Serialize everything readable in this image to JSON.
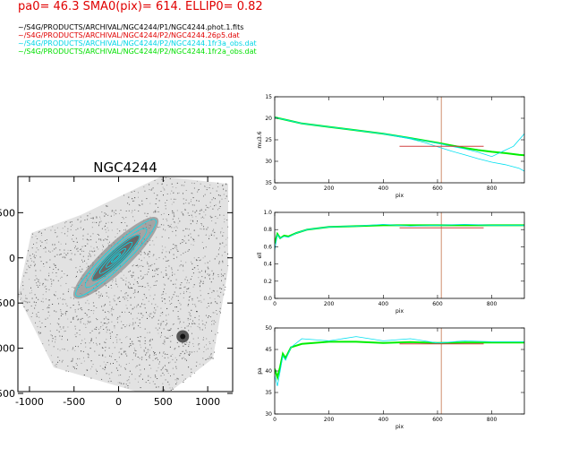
{
  "header": {
    "params": "pa0= 46.3  SMA0(pix)= 614.  ELLIP0= 0.82"
  },
  "files": [
    {
      "name": "~/S4G/PRODUCTS/ARCHIVAL/NGC4244/P1/NGC4244.phot.1.fits",
      "color": "#000000"
    },
    {
      "name": "~/S4G/PRODUCTS/ARCHIVAL/NGC4244/P2/NGC4244.26p5.dat",
      "color": "#e00000"
    },
    {
      "name": "~/S4G/PRODUCTS/ARCHIVAL/NGC4244/P2/NGC4244.1fr3a_obs.dat",
      "color": "#00d6e6"
    },
    {
      "name": "~/S4G/PRODUCTS/ARCHIVAL/NGC4244/P2/NGC4244.1fr2a_obs.dat",
      "color": "#00e000"
    }
  ],
  "colors": {
    "red": "#d04040",
    "cyan": "#00e0f0",
    "green": "#00ee00",
    "vline": "#d09070"
  },
  "chart_data": [
    {
      "type": "scatter",
      "title": "NGC4244",
      "x_ticks": [
        "-1000",
        "-500",
        "0",
        "500",
        "1000"
      ],
      "x_tick_values": [
        -1000,
        -500,
        0,
        500,
        1000
      ],
      "y_ticks": [
        "500",
        "0",
        "-500",
        "-1000",
        "-1500"
      ],
      "y_tick_values": [
        500,
        0,
        -500,
        -1000,
        -1500
      ],
      "xlim": [
        -1130,
        1280
      ],
      "ylim": [
        -1480,
        900
      ],
      "ellipses": {
        "center": [
          -30,
          0
        ],
        "pa_deg": 46.3,
        "sma_pix": [
          614,
          470,
          360,
          250,
          150,
          70
        ],
        "ellip": 0.82,
        "color": "cyan"
      }
    },
    {
      "type": "line",
      "xlabel": "pix",
      "ylabel": "mu3.6",
      "xlim": [
        0,
        920
      ],
      "ylim": [
        35,
        15
      ],
      "x_ticks": [
        "0",
        "200",
        "400",
        "600",
        "800"
      ],
      "x_tick_values": [
        0,
        200,
        400,
        600,
        800
      ],
      "y_ticks": [
        "15",
        "20",
        "25",
        "30",
        "35"
      ],
      "y_tick_values": [
        15,
        20,
        25,
        30,
        35
      ],
      "vline_x": 614,
      "hline": {
        "y": 26.5,
        "x_range": [
          460,
          770
        ]
      },
      "series": [
        {
          "color": "green",
          "x": [
            0,
            50,
            100,
            200,
            300,
            400,
            500,
            600,
            650,
            700,
            750,
            800,
            850,
            900,
            920
          ],
          "y": [
            19.8,
            20.5,
            21.2,
            22.0,
            22.8,
            23.6,
            24.6,
            25.7,
            26.3,
            26.9,
            27.4,
            27.8,
            28.1,
            28.5,
            28.6
          ]
        },
        {
          "color": "cyan",
          "x": [
            0,
            100,
            200,
            300,
            400,
            500,
            550,
            600,
            650,
            700,
            750,
            800,
            850,
            880,
            920
          ],
          "y": [
            19.8,
            21.2,
            22.0,
            22.8,
            23.6,
            24.6,
            25.2,
            25.8,
            26.5,
            27.1,
            27.9,
            28.9,
            27.4,
            26.5,
            23.6
          ]
        },
        {
          "color": "cyan",
          "x": [
            400,
            500,
            550,
            600,
            650,
            700,
            750,
            800,
            850,
            900,
            920
          ],
          "y": [
            23.6,
            24.8,
            25.6,
            26.6,
            27.6,
            28.5,
            29.4,
            30.2,
            30.8,
            31.6,
            32.3
          ]
        }
      ]
    },
    {
      "type": "line",
      "xlabel": "pix",
      "ylabel": "ell",
      "xlim": [
        0,
        920
      ],
      "ylim": [
        0,
        1
      ],
      "x_ticks": [
        "0",
        "200",
        "400",
        "600",
        "800"
      ],
      "x_tick_values": [
        0,
        200,
        400,
        600,
        800
      ],
      "y_ticks": [
        "0.0",
        "0.2",
        "0.4",
        "0.6",
        "0.8",
        "1.0"
      ],
      "y_tick_values": [
        0,
        0.2,
        0.4,
        0.6,
        0.8,
        1.0
      ],
      "vline_x": 614,
      "hline": {
        "y": 0.82,
        "x_range": [
          460,
          770
        ]
      },
      "series": [
        {
          "color": "green",
          "x": [
            0,
            10,
            20,
            35,
            50,
            80,
            120,
            200,
            300,
            400,
            500,
            600,
            700,
            800,
            920
          ],
          "y": [
            0.64,
            0.75,
            0.7,
            0.73,
            0.72,
            0.76,
            0.8,
            0.83,
            0.84,
            0.85,
            0.85,
            0.85,
            0.85,
            0.85,
            0.85
          ]
        },
        {
          "color": "cyan",
          "x": [
            0,
            10,
            20,
            35,
            50,
            80,
            120,
            200,
            300,
            400,
            500,
            600,
            700,
            800,
            920
          ],
          "y": [
            0.56,
            0.74,
            0.7,
            0.72,
            0.71,
            0.76,
            0.8,
            0.83,
            0.84,
            0.86,
            0.84,
            0.85,
            0.86,
            0.85,
            0.85
          ]
        }
      ]
    },
    {
      "type": "line",
      "xlabel": "pix",
      "ylabel": "pa",
      "xlim": [
        0,
        920
      ],
      "ylim": [
        30,
        50
      ],
      "x_ticks": [
        "0",
        "200",
        "400",
        "600",
        "800"
      ],
      "x_tick_values": [
        0,
        200,
        400,
        600,
        800
      ],
      "y_ticks": [
        "30",
        "35",
        "40",
        "45",
        "50"
      ],
      "y_tick_values": [
        30,
        35,
        40,
        45,
        50
      ],
      "vline_x": 614,
      "hline": {
        "y": 46.3,
        "x_range": [
          460,
          770
        ]
      },
      "series": [
        {
          "color": "green",
          "x": [
            0,
            10,
            20,
            30,
            40,
            60,
            100,
            200,
            300,
            400,
            500,
            600,
            700,
            800,
            920
          ],
          "y": [
            40.5,
            38.5,
            41.0,
            44.0,
            43.0,
            45.5,
            46.3,
            46.8,
            46.8,
            46.5,
            46.7,
            46.5,
            46.6,
            46.6,
            46.6
          ]
        },
        {
          "color": "cyan",
          "x": [
            0,
            10,
            20,
            30,
            40,
            60,
            100,
            200,
            300,
            400,
            500,
            600,
            700,
            800,
            920
          ],
          "y": [
            39.0,
            36.5,
            40.0,
            43.5,
            42.5,
            45.5,
            47.5,
            47.0,
            48.0,
            47.0,
            47.5,
            46.5,
            47.0,
            46.8,
            46.8
          ]
        }
      ]
    }
  ]
}
